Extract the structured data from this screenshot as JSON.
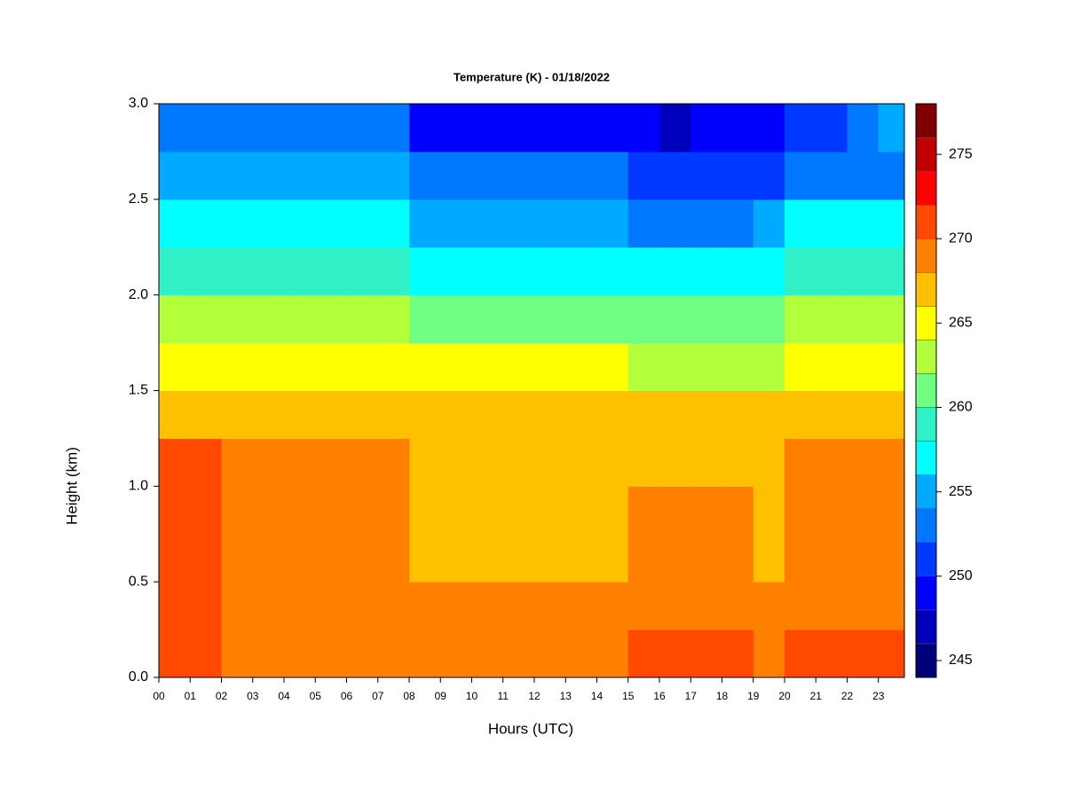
{
  "chart_data": {
    "type": "heatmap",
    "title": "Temperature (K) - 01/18/2022",
    "xlabel": "Hours (UTC)",
    "ylabel": "Height (km)",
    "x": [
      0.5,
      1.5,
      2.5,
      3.5,
      4.5,
      5.5,
      6.5,
      7.5,
      8.5,
      9.5,
      10.5,
      11.5,
      12.5,
      13.5,
      14.5,
      15.5,
      16.5,
      17.5,
      18.5,
      19.5,
      20.5,
      21.5,
      22.5,
      23.5
    ],
    "y": [
      0.125,
      0.375,
      0.625,
      0.875,
      1.125,
      1.375,
      1.625,
      1.875,
      2.125,
      2.375,
      2.625,
      2.875
    ],
    "z": [
      [
        271,
        271,
        269.5,
        269.5,
        269.5,
        269.5,
        269.5,
        269.5,
        269,
        269,
        269,
        269,
        269,
        269,
        269,
        270,
        270,
        270,
        270,
        269,
        270,
        270,
        270,
        270
      ],
      [
        271,
        271,
        269,
        269,
        269,
        269,
        269,
        269,
        268,
        268,
        268,
        268,
        268,
        268,
        268,
        269,
        269,
        269,
        269,
        268,
        269,
        269,
        269,
        269
      ],
      [
        270.5,
        270.5,
        269,
        269,
        269,
        269,
        269,
        269,
        267,
        267,
        267,
        267,
        267,
        267,
        267,
        268.5,
        268.5,
        268.5,
        268.5,
        267,
        269,
        269,
        269,
        269
      ],
      [
        270.5,
        270.5,
        269,
        269,
        269,
        269,
        269,
        269,
        267,
        267,
        267,
        267,
        267,
        267,
        267,
        268,
        268,
        268,
        268,
        267,
        269,
        269,
        269,
        269
      ],
      [
        270.5,
        270.5,
        268.5,
        268.5,
        268.5,
        268.5,
        268.5,
        268.5,
        267,
        267,
        267,
        267,
        267,
        267,
        267,
        267.5,
        267.5,
        267.5,
        267.5,
        267,
        268.5,
        268.5,
        268.5,
        268.5
      ],
      [
        267.5,
        267.5,
        267,
        267,
        267,
        267,
        267,
        267,
        266,
        266,
        266,
        266,
        266,
        266,
        266,
        266.5,
        266.5,
        266.5,
        266.5,
        266,
        267,
        267,
        267,
        267
      ],
      [
        265,
        265,
        264.5,
        264.5,
        264.5,
        264.5,
        264.5,
        264.5,
        264,
        264,
        264,
        264,
        264,
        264,
        264,
        263,
        263,
        263,
        263,
        263.5,
        264.5,
        264.5,
        264.5,
        264.5
      ],
      [
        263,
        263,
        262.5,
        262.5,
        262.5,
        262.5,
        262.5,
        262.5,
        261,
        261,
        261,
        261,
        261,
        261,
        261,
        260,
        260,
        260,
        260,
        260.5,
        262,
        262,
        262,
        262
      ],
      [
        259,
        259,
        258.5,
        258.5,
        258.5,
        258.5,
        258.5,
        258.5,
        257,
        257,
        257,
        257,
        257,
        257,
        257,
        256,
        256,
        256,
        256,
        256.5,
        258.5,
        258.5,
        258.5,
        258.5
      ],
      [
        257,
        257,
        256.5,
        256.5,
        256.5,
        256.5,
        256.5,
        256.5,
        255,
        255,
        255,
        255,
        255,
        255,
        255,
        253.5,
        253.5,
        253.5,
        253.5,
        254,
        256,
        256,
        256,
        256
      ],
      [
        255,
        255,
        254,
        254,
        254,
        254,
        254,
        254,
        252,
        252,
        252,
        252,
        252,
        252,
        252,
        250.5,
        250.5,
        250.5,
        250.5,
        251,
        253.5,
        253.5,
        253.5,
        253.5
      ],
      [
        253,
        253,
        252,
        252,
        252,
        252,
        252,
        252,
        249.5,
        249.5,
        249.5,
        249.5,
        249.5,
        249.5,
        249.5,
        248.5,
        247.5,
        248,
        248.5,
        249,
        251.5,
        251.5,
        252,
        254
      ]
    ],
    "xlim": [
      0,
      23.83
    ],
    "ylim": [
      0,
      3
    ],
    "xticks": [
      {
        "value": 0,
        "label": "00"
      },
      {
        "value": 1,
        "label": "01"
      },
      {
        "value": 2,
        "label": "02"
      },
      {
        "value": 3,
        "label": "03"
      },
      {
        "value": 4,
        "label": "04"
      },
      {
        "value": 5,
        "label": "05"
      },
      {
        "value": 6,
        "label": "06"
      },
      {
        "value": 7,
        "label": "07"
      },
      {
        "value": 8,
        "label": "08"
      },
      {
        "value": 9,
        "label": "09"
      },
      10,
      11,
      12,
      13,
      14,
      15,
      16,
      17,
      18,
      19,
      20,
      21,
      22,
      23
    ],
    "yticks": [
      {
        "value": 0,
        "label": "0.0"
      },
      0.5,
      {
        "value": 1,
        "label": "1.0"
      },
      1.5,
      {
        "value": 2,
        "label": "2.0"
      },
      2.5,
      {
        "value": 3,
        "label": "3.0"
      }
    ],
    "colorbar": {
      "levels": [
        244,
        246,
        248,
        250,
        252,
        254,
        256,
        258,
        260,
        262,
        264,
        266,
        268,
        270,
        272,
        274,
        276,
        278
      ],
      "colors": [
        "#00007a",
        "#0000bc",
        "#0000ff",
        "#0038ff",
        "#0078ff",
        "#00aaff",
        "#00ffff",
        "#30f0c8",
        "#70ff80",
        "#b4ff3c",
        "#ffff00",
        "#ffc000",
        "#ff8000",
        "#ff4800",
        "#ff0000",
        "#c00000",
        "#800000"
      ],
      "ticks": [
        245,
        250,
        255,
        260,
        265,
        270,
        275
      ]
    }
  }
}
